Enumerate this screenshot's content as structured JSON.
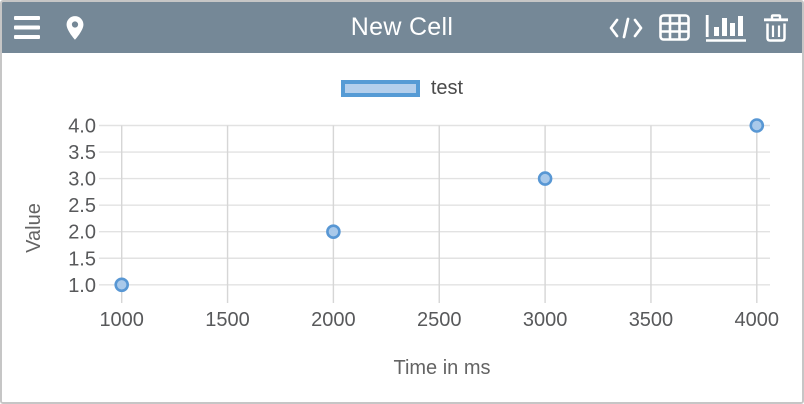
{
  "header": {
    "title": "New Cell",
    "bg_color": "#758897",
    "left_icons": [
      {
        "name": "menu-icon"
      },
      {
        "name": "location-pin-icon"
      }
    ],
    "right_icons": [
      {
        "name": "code-icon"
      },
      {
        "name": "table-icon"
      },
      {
        "name": "bar-chart-icon"
      },
      {
        "name": "trash-icon"
      }
    ]
  },
  "chart_data": {
    "type": "scatter",
    "xlabel": "Time in ms",
    "ylabel": "Value",
    "x_ticks": [
      1000,
      1500,
      2000,
      2500,
      3000,
      3500,
      4000
    ],
    "x_tick_labels": [
      "1000",
      "1500",
      "2000",
      "2500",
      "3000",
      "3500",
      "4000"
    ],
    "y_ticks": [
      1.0,
      1.5,
      2.0,
      2.5,
      3.0,
      3.5,
      4.0
    ],
    "y_tick_labels": [
      "1.0",
      "1.5",
      "2.0",
      "2.5",
      "3.0",
      "3.5",
      "4.0"
    ],
    "xlim": [
      1000,
      4000
    ],
    "ylim": [
      1.0,
      4.0
    ],
    "grid": true,
    "legend_position": "top",
    "series": [
      {
        "name": "test",
        "points": [
          {
            "x": 1000,
            "y": 1.0
          },
          {
            "x": 2000,
            "y": 2.0
          },
          {
            "x": 3000,
            "y": 3.0
          },
          {
            "x": 4000,
            "y": 4.0
          }
        ]
      }
    ],
    "colors": {
      "point_fill": "#a9c9ea",
      "point_stroke": "#5897d4",
      "legend_fill": "#b4cfec",
      "legend_stroke": "#569bd5",
      "grid_h": "#e2e2e2",
      "grid_v": "#d6d6d6",
      "tick_text": "#58595b",
      "axis_label_text": "#646464"
    }
  }
}
